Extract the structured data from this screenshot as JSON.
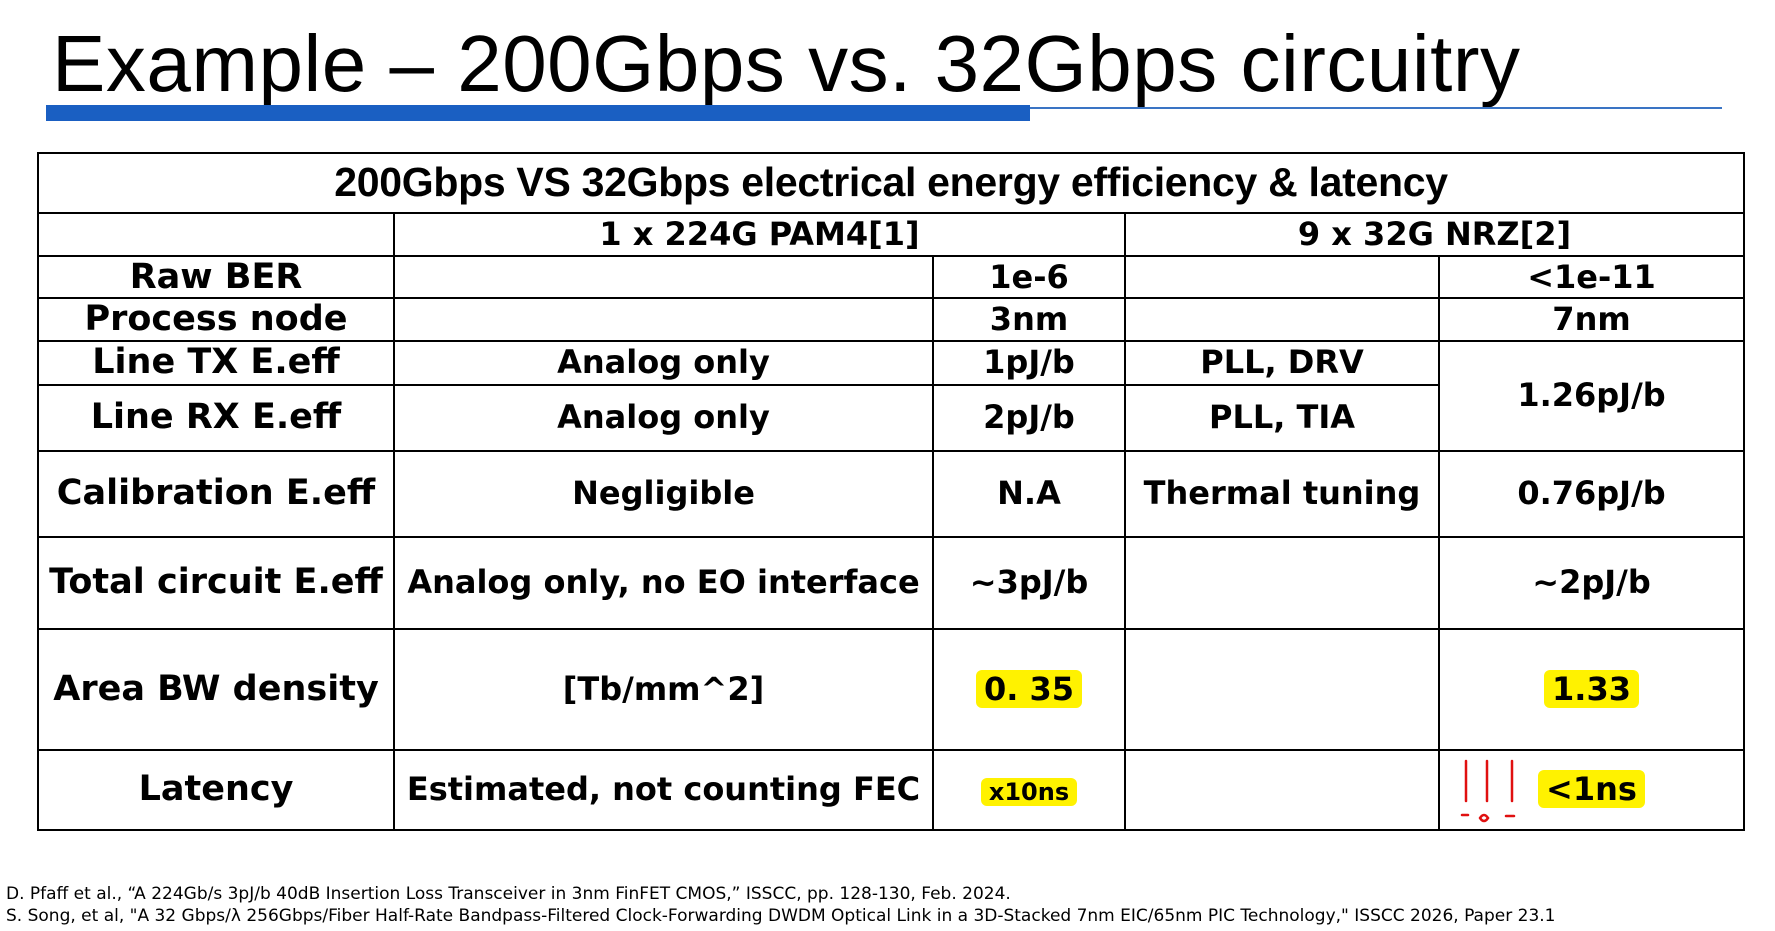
{
  "title": "Example – 200Gbps vs. 32Gbps circuitry",
  "table": {
    "caption": "200Gbps VS 32Gbps electrical energy efficiency & latency",
    "col_groups": [
      "1 x 224G PAM4[1]",
      "9 x 32G NRZ[2]"
    ],
    "rows": [
      {
        "label": "Raw BER",
        "a_note": "",
        "a_value": "1e-6",
        "b_note": "",
        "b_value": "<1e-11"
      },
      {
        "label": "Process node",
        "a_note": "",
        "a_value": "3nm",
        "b_note": "",
        "b_value": "7nm"
      },
      {
        "label": "Line TX E.eff",
        "a_note": "Analog only",
        "a_value": "1pJ/b",
        "b_note": "PLL, DRV",
        "b_value": "1.26pJ/b"
      },
      {
        "label": "Line RX E.eff",
        "a_note": "Analog only",
        "a_value": "2pJ/b",
        "b_note": "PLL, TIA",
        "b_value": ""
      },
      {
        "label": "Calibration E.eff",
        "a_note": "Negligible",
        "a_value": "N.A",
        "b_note": "Thermal tuning",
        "b_value": "0.76pJ/b"
      },
      {
        "label": "Total circuit E.eff",
        "a_note": "Analog only, no EO interface",
        "a_value": "~3pJ/b",
        "b_note": "",
        "b_value": "~2pJ/b"
      },
      {
        "label": "Area BW density",
        "a_note": "[Tb/mm^2]",
        "a_value": "0. 35",
        "b_note": "",
        "b_value": "1.33"
      },
      {
        "label": "Latency",
        "a_note": "Estimated, not counting FEC",
        "a_value": "x10ns",
        "b_note": "",
        "b_value": "<1ns"
      }
    ]
  },
  "references": [
    "D. Pfaff et al., “A 224Gb/s 3pJ/b 40dB Insertion Loss Transceiver in 3nm FinFET CMOS,” ISSCC, pp. 128-130, Feb. 2024.",
    "S. Song, et al, \"A 32 Gbps/λ 256Gbps/Fiber Half-Rate Bandpass-Filtered Clock-Forwarding DWDM Optical Link in a 3D-Stacked 7nm EIC/65nm PIC Technology,\" ISSCC 2026, Paper 23.1"
  ],
  "colors": {
    "accent_bar": "#1a5fc2",
    "highlight": "#fff200",
    "pen_annotation": "#e01010"
  }
}
